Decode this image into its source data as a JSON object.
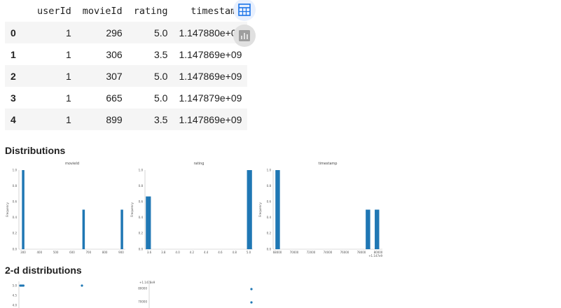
{
  "table": {
    "columns": [
      "",
      "userId",
      "movieId",
      "rating",
      "timestamp"
    ],
    "rows": [
      [
        "0",
        "1",
        "296",
        "5.0",
        "1.147880e+09"
      ],
      [
        "1",
        "1",
        "306",
        "3.5",
        "1.147869e+09"
      ],
      [
        "2",
        "1",
        "307",
        "5.0",
        "1.147869e+09"
      ],
      [
        "3",
        "1",
        "665",
        "5.0",
        "1.147879e+09"
      ],
      [
        "4",
        "1",
        "899",
        "3.5",
        "1.147869e+09"
      ]
    ]
  },
  "buttons": {
    "table_icon": "table-icon",
    "chart_icon": "bar-chart-icon",
    "accent": "#1a73e8",
    "muted": "#9e9e9e"
  },
  "sections": {
    "distributions": "Distributions",
    "two_d": "2-d distributions"
  },
  "chart_data": [
    {
      "type": "bar",
      "title": "movieId",
      "xlabel": "",
      "ylabel": "Frequency",
      "bars": [
        [
          296,
          1.0
        ],
        [
          665,
          0.5
        ],
        [
          899,
          0.5
        ]
      ],
      "xlim": [
        270,
        920
      ],
      "ylim": [
        0,
        1.0
      ],
      "bar_width": 15,
      "xticks": [
        "300",
        "400",
        "500",
        "600",
        "700",
        "800",
        "900"
      ],
      "yticks": [
        "0.0",
        "0.2",
        "0.4",
        "0.6",
        "0.8",
        "1.0"
      ]
    },
    {
      "type": "bar",
      "title": "rating",
      "xlabel": "",
      "ylabel": "Frequency",
      "bars": [
        [
          3.5,
          0.667
        ],
        [
          5.0,
          1.0
        ]
      ],
      "xlim": [
        3.45,
        5.05
      ],
      "ylim": [
        0,
        1.0
      ],
      "bar_width": 0.075,
      "xticks": [
        "3.6",
        "3.8",
        "4.0",
        "4.2",
        "4.4",
        "4.6",
        "4.8",
        "5.0"
      ],
      "yticks": [
        "0.0",
        "0.2",
        "0.4",
        "0.6",
        "0.8",
        "1.0"
      ]
    },
    {
      "type": "bar",
      "title": "timestamp",
      "xlabel": "",
      "ylabel": "Frequency",
      "bars": [
        [
          69000,
          1.0
        ],
        [
          79000,
          0.5
        ],
        [
          80000,
          0.5
        ]
      ],
      "xlim": [
        68500,
        80600
      ],
      "ylim": [
        0,
        1.0
      ],
      "bar_width": 500,
      "xticks": [
        "68000",
        "70000",
        "72000",
        "74000",
        "76000",
        "78000",
        "80000"
      ],
      "offset": "+1.147e9",
      "yticks": [
        "0.0",
        "0.2",
        "0.4",
        "0.6",
        "0.8",
        "1.0"
      ]
    },
    {
      "type": "scatter",
      "title": "",
      "points": [
        [
          1,
          5.0
        ],
        [
          1.05,
          5.0
        ],
        [
          1.1,
          5.0
        ],
        [
          3.0,
          5.0
        ]
      ],
      "yticks": [
        "5.0",
        "4.5",
        "4.0"
      ]
    },
    {
      "type": "scatter",
      "title": "",
      "offset": "+1.1478e9",
      "points": [
        [
          5.0,
          80000
        ],
        [
          5.0,
          70000
        ]
      ],
      "yticks": [
        "80000",
        "70000"
      ]
    }
  ]
}
